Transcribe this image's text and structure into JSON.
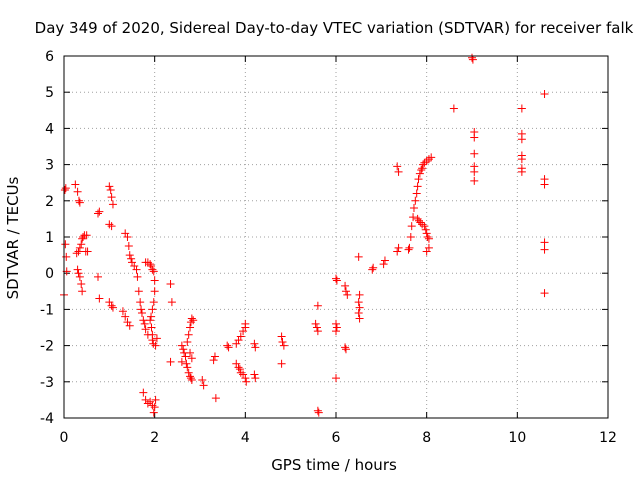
{
  "chart_data": {
    "type": "scatter",
    "title": "Day 349 of 2020, Sidereal Day-to-day VTEC variation (SDTVAR) for receiver falk",
    "xlabel": "GPS time / hours",
    "ylabel": "SDTVAR / TECUs",
    "xlim": [
      0,
      12
    ],
    "ylim": [
      -4,
      6
    ],
    "xticks": [
      0,
      2,
      4,
      6,
      8,
      10,
      12
    ],
    "yticks": [
      -4,
      -3,
      -2,
      -1,
      0,
      1,
      2,
      3,
      4,
      5,
      6
    ],
    "grid": true,
    "marker": "+",
    "color": "#ff0000",
    "series": [
      {
        "name": "SDTVAR",
        "points": [
          [
            0.0,
            -0.6
          ],
          [
            0.02,
            2.3
          ],
          [
            0.04,
            2.35
          ],
          [
            0.03,
            0.8
          ],
          [
            0.05,
            0.45
          ],
          [
            0.06,
            0.05
          ],
          [
            0.25,
            2.45
          ],
          [
            0.3,
            2.25
          ],
          [
            0.33,
            2.0
          ],
          [
            0.35,
            1.95
          ],
          [
            0.28,
            0.55
          ],
          [
            0.32,
            0.6
          ],
          [
            0.35,
            0.7
          ],
          [
            0.38,
            0.8
          ],
          [
            0.4,
            0.95
          ],
          [
            0.42,
            1.0
          ],
          [
            0.45,
            1.05
          ],
          [
            0.5,
            1.05
          ],
          [
            0.48,
            0.6
          ],
          [
            0.52,
            0.6
          ],
          [
            0.3,
            0.1
          ],
          [
            0.32,
            0.0
          ],
          [
            0.35,
            -0.1
          ],
          [
            0.38,
            -0.3
          ],
          [
            0.4,
            -0.5
          ],
          [
            0.75,
            1.65
          ],
          [
            0.78,
            1.7
          ],
          [
            0.75,
            -0.1
          ],
          [
            0.78,
            -0.7
          ],
          [
            1.0,
            2.4
          ],
          [
            1.03,
            2.3
          ],
          [
            1.05,
            2.1
          ],
          [
            1.08,
            1.9
          ],
          [
            1.0,
            1.35
          ],
          [
            1.05,
            1.3
          ],
          [
            1.0,
            -0.8
          ],
          [
            1.05,
            -0.9
          ],
          [
            1.08,
            -0.95
          ],
          [
            1.35,
            1.1
          ],
          [
            1.4,
            1.0
          ],
          [
            1.43,
            0.75
          ],
          [
            1.45,
            0.5
          ],
          [
            1.48,
            0.4
          ],
          [
            1.5,
            0.3
          ],
          [
            1.55,
            0.2
          ],
          [
            1.6,
            0.1
          ],
          [
            1.62,
            -0.1
          ],
          [
            1.3,
            -1.05
          ],
          [
            1.35,
            -1.2
          ],
          [
            1.4,
            -1.35
          ],
          [
            1.45,
            -1.45
          ],
          [
            1.65,
            -0.5
          ],
          [
            1.68,
            -0.8
          ],
          [
            1.7,
            -1.0
          ],
          [
            1.72,
            -1.1
          ],
          [
            1.75,
            -1.3
          ],
          [
            1.78,
            -1.4
          ],
          [
            1.8,
            -1.55
          ],
          [
            1.85,
            -1.7
          ],
          [
            1.8,
            0.3
          ],
          [
            1.85,
            0.3
          ],
          [
            1.9,
            0.25
          ],
          [
            1.92,
            0.2
          ],
          [
            1.95,
            0.1
          ],
          [
            1.98,
            0.05
          ],
          [
            2.0,
            -0.2
          ],
          [
            2.0,
            -0.5
          ],
          [
            1.98,
            -0.8
          ],
          [
            1.95,
            -1.0
          ],
          [
            1.92,
            -1.2
          ],
          [
            1.9,
            -1.3
          ],
          [
            1.93,
            -1.5
          ],
          [
            1.95,
            -1.7
          ],
          [
            1.95,
            -1.85
          ],
          [
            1.97,
            -1.95
          ],
          [
            2.02,
            -2.0
          ],
          [
            2.05,
            -1.8
          ],
          [
            1.75,
            -3.3
          ],
          [
            1.8,
            -3.5
          ],
          [
            1.85,
            -3.6
          ],
          [
            1.9,
            -3.55
          ],
          [
            1.95,
            -3.65
          ],
          [
            2.0,
            -3.7
          ],
          [
            2.02,
            -3.5
          ],
          [
            1.98,
            -3.85
          ],
          [
            2.35,
            -0.3
          ],
          [
            2.38,
            -0.8
          ],
          [
            2.35,
            -2.45
          ],
          [
            2.6,
            -2.0
          ],
          [
            2.63,
            -2.1
          ],
          [
            2.65,
            -2.2
          ],
          [
            2.68,
            -2.3
          ],
          [
            2.6,
            -2.45
          ],
          [
            2.7,
            -2.5
          ],
          [
            2.72,
            -2.6
          ],
          [
            2.75,
            -2.75
          ],
          [
            2.78,
            -2.85
          ],
          [
            2.8,
            -2.9
          ],
          [
            2.82,
            -2.95
          ],
          [
            2.72,
            -1.9
          ],
          [
            2.75,
            -1.7
          ],
          [
            2.78,
            -1.5
          ],
          [
            2.8,
            -1.35
          ],
          [
            2.82,
            -1.25
          ],
          [
            2.85,
            -1.3
          ],
          [
            2.78,
            -2.2
          ],
          [
            2.82,
            -2.35
          ],
          [
            3.05,
            -2.95
          ],
          [
            3.08,
            -3.1
          ],
          [
            3.3,
            -2.4
          ],
          [
            3.33,
            -2.3
          ],
          [
            3.35,
            -3.45
          ],
          [
            3.6,
            -2.0
          ],
          [
            3.63,
            -2.05
          ],
          [
            3.8,
            -2.5
          ],
          [
            3.85,
            -2.6
          ],
          [
            3.88,
            -2.65
          ],
          [
            3.9,
            -2.75
          ],
          [
            3.95,
            -2.8
          ],
          [
            4.0,
            -2.9
          ],
          [
            4.02,
            -3.0
          ],
          [
            4.0,
            -1.5
          ],
          [
            3.95,
            -1.6
          ],
          [
            3.9,
            -1.75
          ],
          [
            3.85,
            -1.85
          ],
          [
            3.8,
            -1.95
          ],
          [
            4.0,
            -1.4
          ],
          [
            4.2,
            -1.95
          ],
          [
            4.22,
            -2.05
          ],
          [
            4.2,
            -2.8
          ],
          [
            4.22,
            -2.9
          ],
          [
            4.8,
            -1.75
          ],
          [
            4.82,
            -1.9
          ],
          [
            4.85,
            -2.0
          ],
          [
            4.8,
            -2.5
          ],
          [
            5.6,
            -0.9
          ],
          [
            5.55,
            -1.4
          ],
          [
            5.58,
            -1.5
          ],
          [
            5.6,
            -1.6
          ],
          [
            5.6,
            -3.8
          ],
          [
            5.62,
            -3.85
          ],
          [
            6.0,
            -0.15
          ],
          [
            6.02,
            -0.2
          ],
          [
            6.0,
            -1.4
          ],
          [
            6.02,
            -1.5
          ],
          [
            6.0,
            -1.6
          ],
          [
            6.0,
            -2.9
          ],
          [
            6.2,
            -0.35
          ],
          [
            6.22,
            -0.5
          ],
          [
            6.25,
            -0.6
          ],
          [
            6.2,
            -2.05
          ],
          [
            6.22,
            -2.1
          ],
          [
            6.5,
            0.45
          ],
          [
            6.52,
            -0.6
          ],
          [
            6.5,
            -0.8
          ],
          [
            6.52,
            -0.95
          ],
          [
            6.5,
            -1.1
          ],
          [
            6.52,
            -1.25
          ],
          [
            6.8,
            0.1
          ],
          [
            6.82,
            0.15
          ],
          [
            7.05,
            0.25
          ],
          [
            7.08,
            0.35
          ],
          [
            7.35,
            2.95
          ],
          [
            7.38,
            2.8
          ],
          [
            7.35,
            0.6
          ],
          [
            7.38,
            0.7
          ],
          [
            7.6,
            0.65
          ],
          [
            7.62,
            0.7
          ],
          [
            7.65,
            1.0
          ],
          [
            7.67,
            1.3
          ],
          [
            7.7,
            1.55
          ],
          [
            7.72,
            1.8
          ],
          [
            7.75,
            2.0
          ],
          [
            7.78,
            2.2
          ],
          [
            7.8,
            2.4
          ],
          [
            7.82,
            2.6
          ],
          [
            7.85,
            2.75
          ],
          [
            7.88,
            2.85
          ],
          [
            7.9,
            2.9
          ],
          [
            7.92,
            3.0
          ],
          [
            7.95,
            3.05
          ],
          [
            8.0,
            3.1
          ],
          [
            8.05,
            3.15
          ],
          [
            8.1,
            3.2
          ],
          [
            7.8,
            1.5
          ],
          [
            7.83,
            1.45
          ],
          [
            7.86,
            1.4
          ],
          [
            7.9,
            1.35
          ],
          [
            7.95,
            1.3
          ],
          [
            7.98,
            1.2
          ],
          [
            8.0,
            1.1
          ],
          [
            8.02,
            1.0
          ],
          [
            8.05,
            0.95
          ],
          [
            8.0,
            0.6
          ],
          [
            8.05,
            0.7
          ],
          [
            8.6,
            4.55
          ],
          [
            9.0,
            5.95
          ],
          [
            9.02,
            5.9
          ],
          [
            9.05,
            3.9
          ],
          [
            9.05,
            3.75
          ],
          [
            9.05,
            3.3
          ],
          [
            9.05,
            2.95
          ],
          [
            9.05,
            2.8
          ],
          [
            9.05,
            2.55
          ],
          [
            10.1,
            4.55
          ],
          [
            10.1,
            3.85
          ],
          [
            10.1,
            3.7
          ],
          [
            10.1,
            3.25
          ],
          [
            10.1,
            3.15
          ],
          [
            10.1,
            2.9
          ],
          [
            10.1,
            2.8
          ],
          [
            10.6,
            4.95
          ],
          [
            10.6,
            2.6
          ],
          [
            10.6,
            2.45
          ],
          [
            10.6,
            0.85
          ],
          [
            10.6,
            0.65
          ],
          [
            10.6,
            -0.55
          ]
        ]
      }
    ]
  }
}
